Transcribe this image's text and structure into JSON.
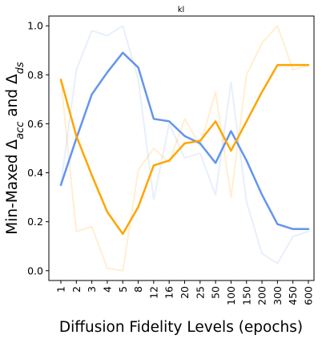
{
  "chart_data": {
    "type": "line",
    "title": "kl",
    "xlabel": "Diffusion Fidelity Levels (epochs)",
    "ylabel": "Min-Maxed Δacc and Δds",
    "ylabel_parts": {
      "prefix": "Min-Maxed ",
      "sym1": "Δ",
      "sub1": "acc",
      "mid": " and ",
      "sym2": "Δ",
      "sub2": "ds"
    },
    "categories": [
      "1",
      "2",
      "3",
      "4",
      "5",
      "8",
      "12",
      "16",
      "20",
      "25",
      "50",
      "100",
      "150",
      "200",
      "300",
      "450",
      "600"
    ],
    "ylim": [
      -0.04,
      1.04
    ],
    "yticks": [
      "0.0",
      "0.2",
      "0.4",
      "0.6",
      "0.8",
      "1.0"
    ],
    "grid": false,
    "series": [
      {
        "color": "#6495ED",
        "alpha": 0.15,
        "width": 2,
        "values": [
          0.35,
          0.82,
          0.98,
          0.96,
          1.0,
          0.78,
          0.29,
          0.6,
          0.46,
          0.48,
          0.31,
          0.77,
          0.28,
          0.07,
          0.03,
          0.14,
          0.16
        ]
      },
      {
        "color": "#FFA500",
        "alpha": 0.18,
        "width": 2,
        "values": [
          0.78,
          0.16,
          0.18,
          0.01,
          0.0,
          0.41,
          0.5,
          0.44,
          0.62,
          0.51,
          0.73,
          0.3,
          0.8,
          0.93,
          1.0,
          0.82,
          0.84
        ]
      },
      {
        "color": "#6495ED",
        "alpha": 1.0,
        "width": 2.5,
        "values": [
          0.35,
          0.54,
          0.72,
          0.81,
          0.89,
          0.83,
          0.62,
          0.61,
          0.55,
          0.52,
          0.44,
          0.57,
          0.45,
          0.31,
          0.19,
          0.17,
          0.17
        ]
      },
      {
        "color": "#FFA500",
        "alpha": 1.0,
        "width": 2.5,
        "values": [
          0.78,
          0.55,
          0.39,
          0.24,
          0.15,
          0.26,
          0.43,
          0.45,
          0.52,
          0.53,
          0.61,
          0.49,
          0.61,
          0.73,
          0.84,
          0.84,
          0.84
        ]
      }
    ]
  }
}
